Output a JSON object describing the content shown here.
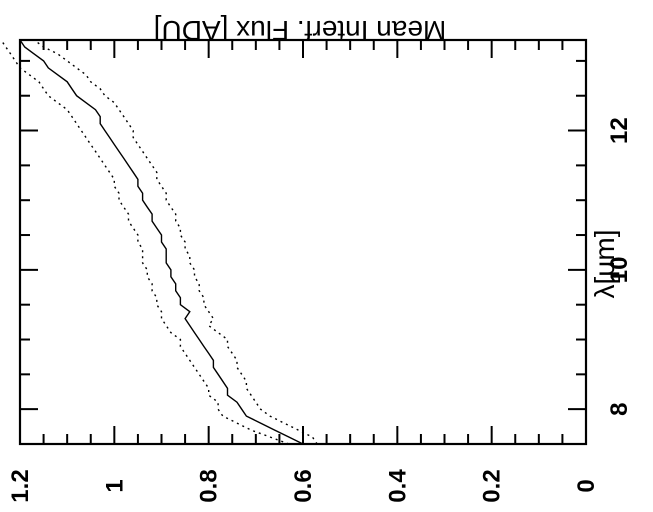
{
  "chart_data": {
    "type": "line",
    "xlabel": "λ[μm]",
    "ylabel": "Mean Interf. Flux [ADU]",
    "xlim": [
      7.5,
      13.3
    ],
    "ylim": [
      0,
      1.2
    ],
    "x_ticks": [
      "8",
      "10",
      "12"
    ],
    "y_ticks": [
      "0",
      "0.2",
      "0.4",
      "0.6",
      "0.8",
      "1",
      "1.2"
    ],
    "grid": false,
    "series": [
      {
        "style": "solid",
        "x": [
          7.5,
          7.6,
          7.7,
          7.8,
          7.9,
          8.0,
          8.1,
          8.2,
          8.3,
          8.4,
          8.5,
          8.6,
          8.7,
          8.8,
          8.9,
          9.0,
          9.1,
          9.2,
          9.3,
          9.4,
          9.5,
          9.6,
          9.7,
          9.8,
          9.9,
          10.0,
          10.1,
          10.2,
          10.3,
          10.4,
          10.5,
          10.6,
          10.7,
          10.8,
          10.9,
          11.0,
          11.1,
          11.2,
          11.3,
          11.4,
          11.5,
          11.6,
          11.7,
          11.8,
          11.9,
          12.0,
          12.1,
          12.2,
          12.3,
          12.4,
          12.5,
          12.6,
          12.7,
          12.8,
          12.9,
          13.0,
          13.1,
          13.2,
          13.3
        ],
        "y": [
          0.6,
          0.63,
          0.66,
          0.69,
          0.72,
          0.73,
          0.74,
          0.76,
          0.76,
          0.77,
          0.78,
          0.79,
          0.79,
          0.8,
          0.81,
          0.82,
          0.83,
          0.84,
          0.85,
          0.84,
          0.86,
          0.86,
          0.87,
          0.87,
          0.88,
          0.88,
          0.89,
          0.89,
          0.89,
          0.9,
          0.9,
          0.91,
          0.92,
          0.92,
          0.93,
          0.94,
          0.94,
          0.95,
          0.95,
          0.96,
          0.97,
          0.98,
          0.99,
          1.0,
          1.01,
          1.02,
          1.03,
          1.03,
          1.04,
          1.06,
          1.08,
          1.09,
          1.1,
          1.12,
          1.14,
          1.15,
          1.17,
          1.19,
          1.2
        ]
      },
      {
        "style": "dotted",
        "x": [
          7.5,
          7.6,
          7.7,
          7.8,
          7.9,
          8.0,
          8.1,
          8.2,
          8.3,
          8.4,
          8.5,
          8.6,
          8.7,
          8.8,
          8.9,
          9.0,
          9.1,
          9.2,
          9.3,
          9.4,
          9.5,
          9.6,
          9.7,
          9.8,
          9.9,
          10.0,
          10.1,
          10.2,
          10.3,
          10.4,
          10.5,
          10.6,
          10.7,
          10.8,
          10.9,
          11.0,
          11.1,
          11.2,
          11.3,
          11.4,
          11.5,
          11.6,
          11.7,
          11.8,
          11.9,
          12.0,
          12.1,
          12.2,
          12.3,
          12.4,
          12.5,
          12.6,
          12.7,
          12.8,
          12.9,
          13.0,
          13.1,
          13.2,
          13.3
        ],
        "y": [
          0.57,
          0.58,
          0.61,
          0.64,
          0.67,
          0.69,
          0.7,
          0.71,
          0.72,
          0.72,
          0.73,
          0.74,
          0.74,
          0.75,
          0.76,
          0.76,
          0.78,
          0.8,
          0.79,
          0.8,
          0.81,
          0.81,
          0.82,
          0.82,
          0.83,
          0.83,
          0.84,
          0.84,
          0.85,
          0.85,
          0.86,
          0.86,
          0.87,
          0.87,
          0.88,
          0.89,
          0.89,
          0.9,
          0.91,
          0.91,
          0.92,
          0.93,
          0.94,
          0.95,
          0.96,
          0.96,
          0.97,
          0.98,
          0.99,
          1.0,
          1.02,
          1.03,
          1.05,
          1.06,
          1.08,
          1.1,
          1.12,
          1.15,
          1.17
        ]
      },
      {
        "style": "dotted",
        "x": [
          7.5,
          7.6,
          7.7,
          7.8,
          7.9,
          8.0,
          8.1,
          8.2,
          8.3,
          8.4,
          8.5,
          8.6,
          8.7,
          8.8,
          8.9,
          9.0,
          9.1,
          9.2,
          9.3,
          9.4,
          9.5,
          9.6,
          9.7,
          9.8,
          9.9,
          10.0,
          10.1,
          10.2,
          10.3,
          10.4,
          10.5,
          10.6,
          10.7,
          10.8,
          10.9,
          11.0,
          11.1,
          11.2,
          11.3,
          11.4,
          11.5,
          11.6,
          11.7,
          11.8,
          11.9,
          12.0,
          12.1,
          12.2,
          12.3,
          12.4,
          12.5,
          12.6,
          12.7,
          12.8,
          12.9,
          13.0,
          13.1,
          13.2,
          13.3
        ],
        "y": [
          0.63,
          0.67,
          0.71,
          0.74,
          0.77,
          0.78,
          0.78,
          0.8,
          0.8,
          0.81,
          0.82,
          0.83,
          0.84,
          0.85,
          0.86,
          0.86,
          0.88,
          0.89,
          0.9,
          0.9,
          0.91,
          0.91,
          0.92,
          0.92,
          0.93,
          0.93,
          0.94,
          0.94,
          0.94,
          0.95,
          0.95,
          0.96,
          0.97,
          0.97,
          0.98,
          0.99,
          0.99,
          1.0,
          1.0,
          1.01,
          1.02,
          1.03,
          1.04,
          1.05,
          1.06,
          1.07,
          1.08,
          1.09,
          1.1,
          1.12,
          1.14,
          1.15,
          1.16,
          1.18,
          1.2,
          1.21,
          1.22,
          1.23,
          1.24
        ]
      }
    ]
  }
}
